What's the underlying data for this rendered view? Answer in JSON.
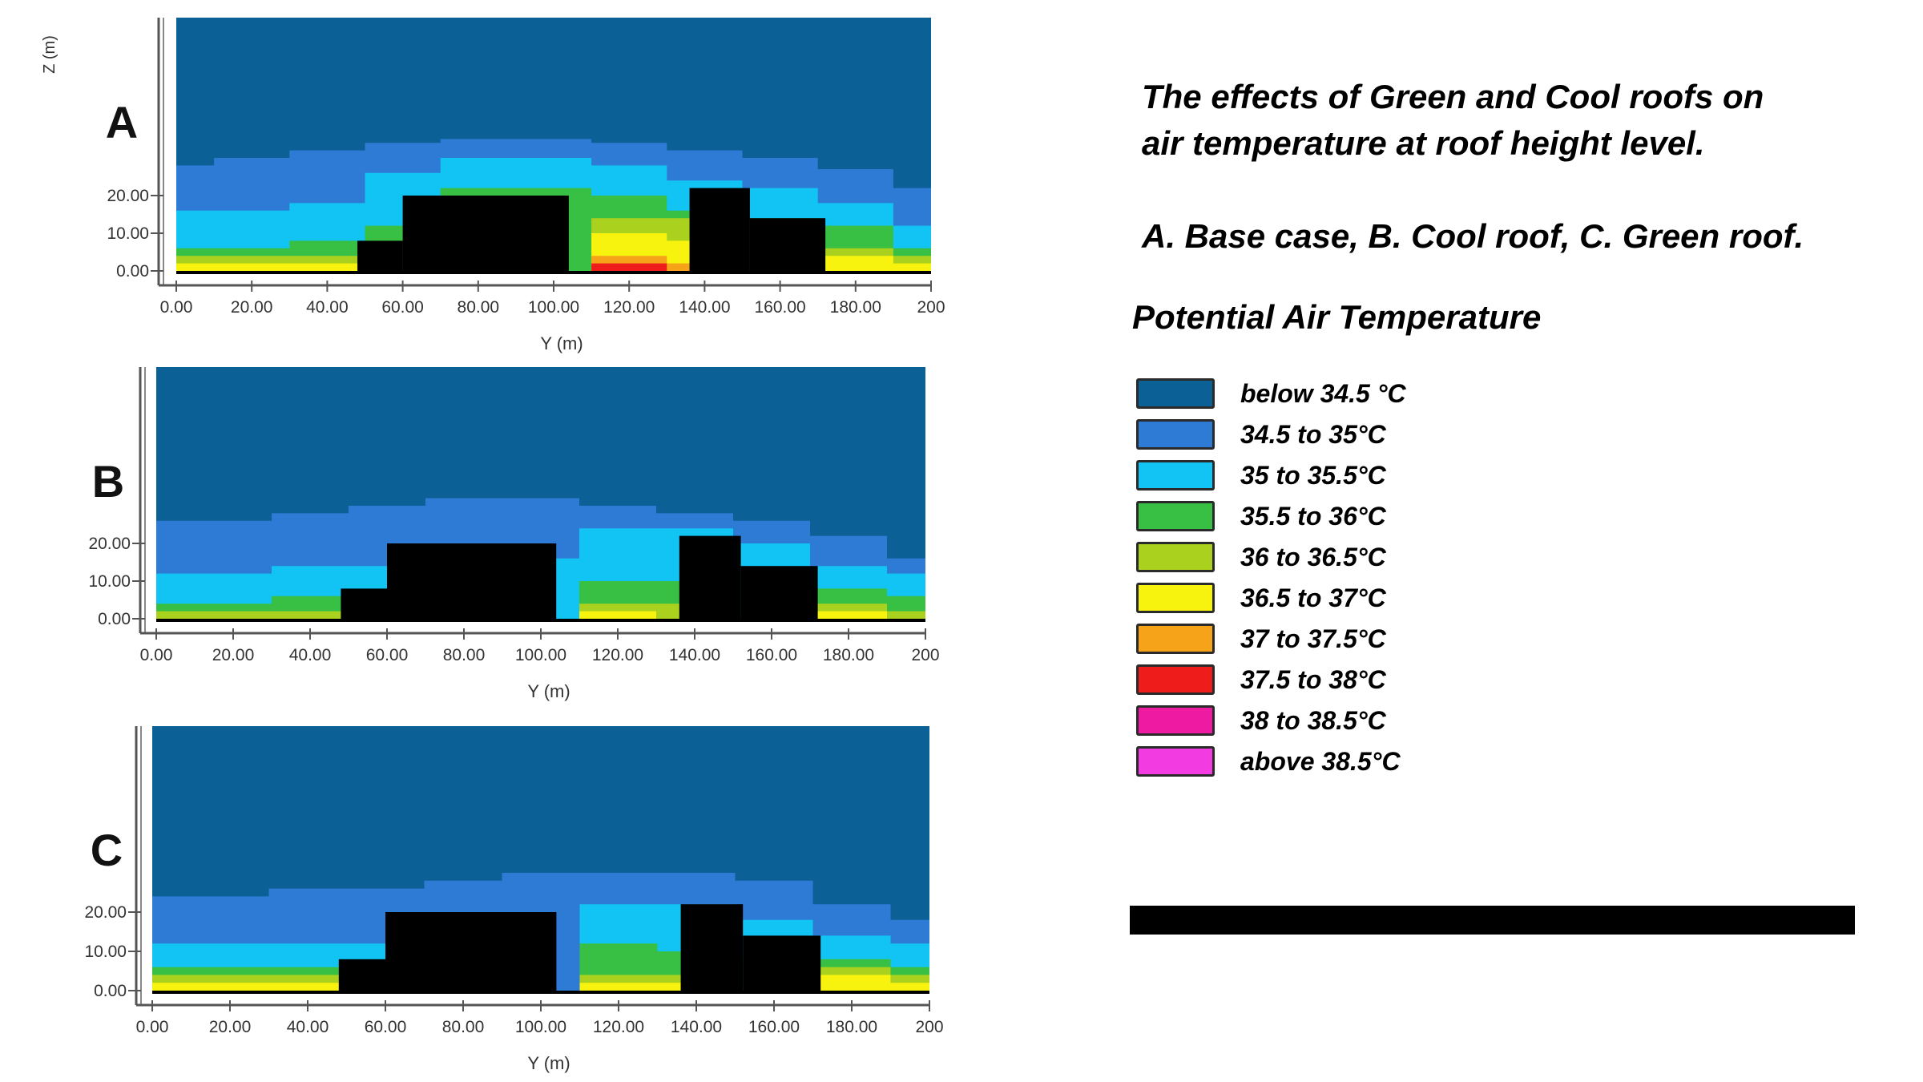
{
  "caption": {
    "line1": "The effects of Green and Cool roofs on",
    "line2": "air temperature at roof height level.",
    "cases": "A. Base case, B. Cool roof, C. Green roof."
  },
  "legend": {
    "title": "Potential Air Temperature",
    "items": [
      {
        "label": "below 34.5 °C",
        "color": "#0b6096"
      },
      {
        "label": "34.5 to 35°C",
        "color": "#2e7bd5"
      },
      {
        "label": "35 to 35.5°C",
        "color": "#12c4f3"
      },
      {
        "label": "35.5 to 36°C",
        "color": "#37c043"
      },
      {
        "label": "36 to 36.5°C",
        "color": "#a9d11e"
      },
      {
        "label": "36.5 to 37°C",
        "color": "#f7f20e"
      },
      {
        "label": "37 to 37.5°C",
        "color": "#f7a31a"
      },
      {
        "label": "37.5 to 38°C",
        "color": "#ef1c1c"
      },
      {
        "label": "38 to 38.5°C",
        "color": "#ee1aa1"
      },
      {
        "label": "above 38.5°C",
        "color": "#f23ce2"
      }
    ]
  },
  "chart_data": [
    {
      "type": "heatmap",
      "panel_label": "A",
      "xlabel": "Y (m)",
      "ylabel": "Z (m)",
      "xticks": [
        "0.00",
        "20.00",
        "40.00",
        "60.00",
        "80.00",
        "100.00",
        "120.00",
        "140.00",
        "160.00",
        "180.00",
        "200"
      ],
      "yticks": [
        "0.00",
        "10.00",
        "20.00"
      ],
      "xlim": [
        0,
        200
      ],
      "buildings_height_m": [
        {
          "y_from": 48,
          "y_to": 60,
          "z": 8
        },
        {
          "y_from": 60,
          "y_to": 104,
          "z": 20
        },
        {
          "y_from": 136,
          "y_to": 152,
          "z": 22
        },
        {
          "y_from": 152,
          "y_to": 172,
          "z": 14
        }
      ],
      "bands": [
        {
          "class": "34.5 to 35°C",
          "top_z": [
            28,
            30,
            32,
            34,
            35,
            35,
            34,
            32,
            30,
            27,
            22
          ]
        },
        {
          "class": "35 to 35.5°C",
          "top_z": [
            16,
            16,
            18,
            26,
            30,
            30,
            28,
            24,
            22,
            18,
            12
          ]
        },
        {
          "class": "35.5 to 36°C",
          "top_z": [
            6,
            6,
            8,
            12,
            22,
            22,
            20,
            16,
            14,
            12,
            6
          ]
        },
        {
          "class": "36 to 36.5°C",
          "top_z": [
            4,
            4,
            4,
            0,
            0,
            0,
            14,
            14,
            0,
            6,
            4
          ]
        },
        {
          "class": "36.5 to 37°C",
          "top_z": [
            2,
            2,
            2,
            0,
            0,
            0,
            10,
            8,
            0,
            4,
            2
          ]
        },
        {
          "class": "37 to 37.5°C",
          "top_z": [
            0,
            0,
            0,
            0,
            0,
            0,
            4,
            2,
            0,
            0,
            0
          ]
        },
        {
          "class": "37.5 to 38°C",
          "top_z": [
            0,
            0,
            0,
            0,
            0,
            0,
            2,
            0,
            0,
            0,
            0
          ]
        }
      ]
    },
    {
      "type": "heatmap",
      "panel_label": "B",
      "xlabel": "Y (m)",
      "ylabel": "",
      "xticks": [
        "0.00",
        "20.00",
        "40.00",
        "60.00",
        "80.00",
        "100.00",
        "120.00",
        "140.00",
        "160.00",
        "180.00",
        "200"
      ],
      "yticks": [
        "0.00",
        "10.00",
        "20.00"
      ],
      "xlim": [
        0,
        200
      ],
      "buildings_height_m": [
        {
          "y_from": 48,
          "y_to": 60,
          "z": 8
        },
        {
          "y_from": 60,
          "y_to": 104,
          "z": 20
        },
        {
          "y_from": 136,
          "y_to": 152,
          "z": 22
        },
        {
          "y_from": 152,
          "y_to": 172,
          "z": 14
        }
      ],
      "bands": [
        {
          "class": "34.5 to 35°C",
          "top_z": [
            26,
            26,
            28,
            30,
            32,
            32,
            30,
            28,
            26,
            22,
            16
          ]
        },
        {
          "class": "35 to 35.5°C",
          "top_z": [
            12,
            12,
            14,
            14,
            16,
            16,
            24,
            24,
            20,
            14,
            12
          ]
        },
        {
          "class": "35.5 to 36°C",
          "top_z": [
            4,
            4,
            6,
            6,
            0,
            0,
            10,
            10,
            0,
            8,
            6
          ]
        },
        {
          "class": "36 to 36.5°C",
          "top_z": [
            2,
            2,
            2,
            0,
            0,
            0,
            4,
            4,
            0,
            4,
            2
          ]
        },
        {
          "class": "36.5 to 37°C",
          "top_z": [
            0,
            0,
            0,
            0,
            0,
            0,
            2,
            0,
            0,
            2,
            0
          ]
        }
      ]
    },
    {
      "type": "heatmap",
      "panel_label": "C",
      "xlabel": "Y (m)",
      "ylabel": "",
      "xticks": [
        "0.00",
        "20.00",
        "40.00",
        "60.00",
        "80.00",
        "100.00",
        "120.00",
        "140.00",
        "160.00",
        "180.00",
        "200"
      ],
      "yticks": [
        "0.00",
        "10.00",
        "20.00"
      ],
      "xlim": [
        0,
        200
      ],
      "buildings_height_m": [
        {
          "y_from": 48,
          "y_to": 60,
          "z": 8
        },
        {
          "y_from": 60,
          "y_to": 104,
          "z": 20
        },
        {
          "y_from": 136,
          "y_to": 152,
          "z": 22
        },
        {
          "y_from": 152,
          "y_to": 172,
          "z": 14
        }
      ],
      "bands": [
        {
          "class": "34.5 to 35°C",
          "top_z": [
            24,
            24,
            26,
            26,
            28,
            30,
            30,
            30,
            28,
            22,
            18
          ]
        },
        {
          "class": "35 to 35.5°C",
          "top_z": [
            12,
            12,
            12,
            12,
            0,
            0,
            22,
            22,
            18,
            14,
            12
          ]
        },
        {
          "class": "35.5 to 36°C",
          "top_z": [
            6,
            6,
            6,
            6,
            0,
            0,
            12,
            10,
            8,
            8,
            6
          ]
        },
        {
          "class": "36 to 36.5°C",
          "top_z": [
            4,
            4,
            4,
            0,
            0,
            0,
            4,
            4,
            0,
            6,
            4
          ]
        },
        {
          "class": "36.5 to 37°C",
          "top_z": [
            2,
            2,
            2,
            0,
            0,
            0,
            2,
            2,
            0,
            4,
            2
          ]
        }
      ]
    }
  ]
}
